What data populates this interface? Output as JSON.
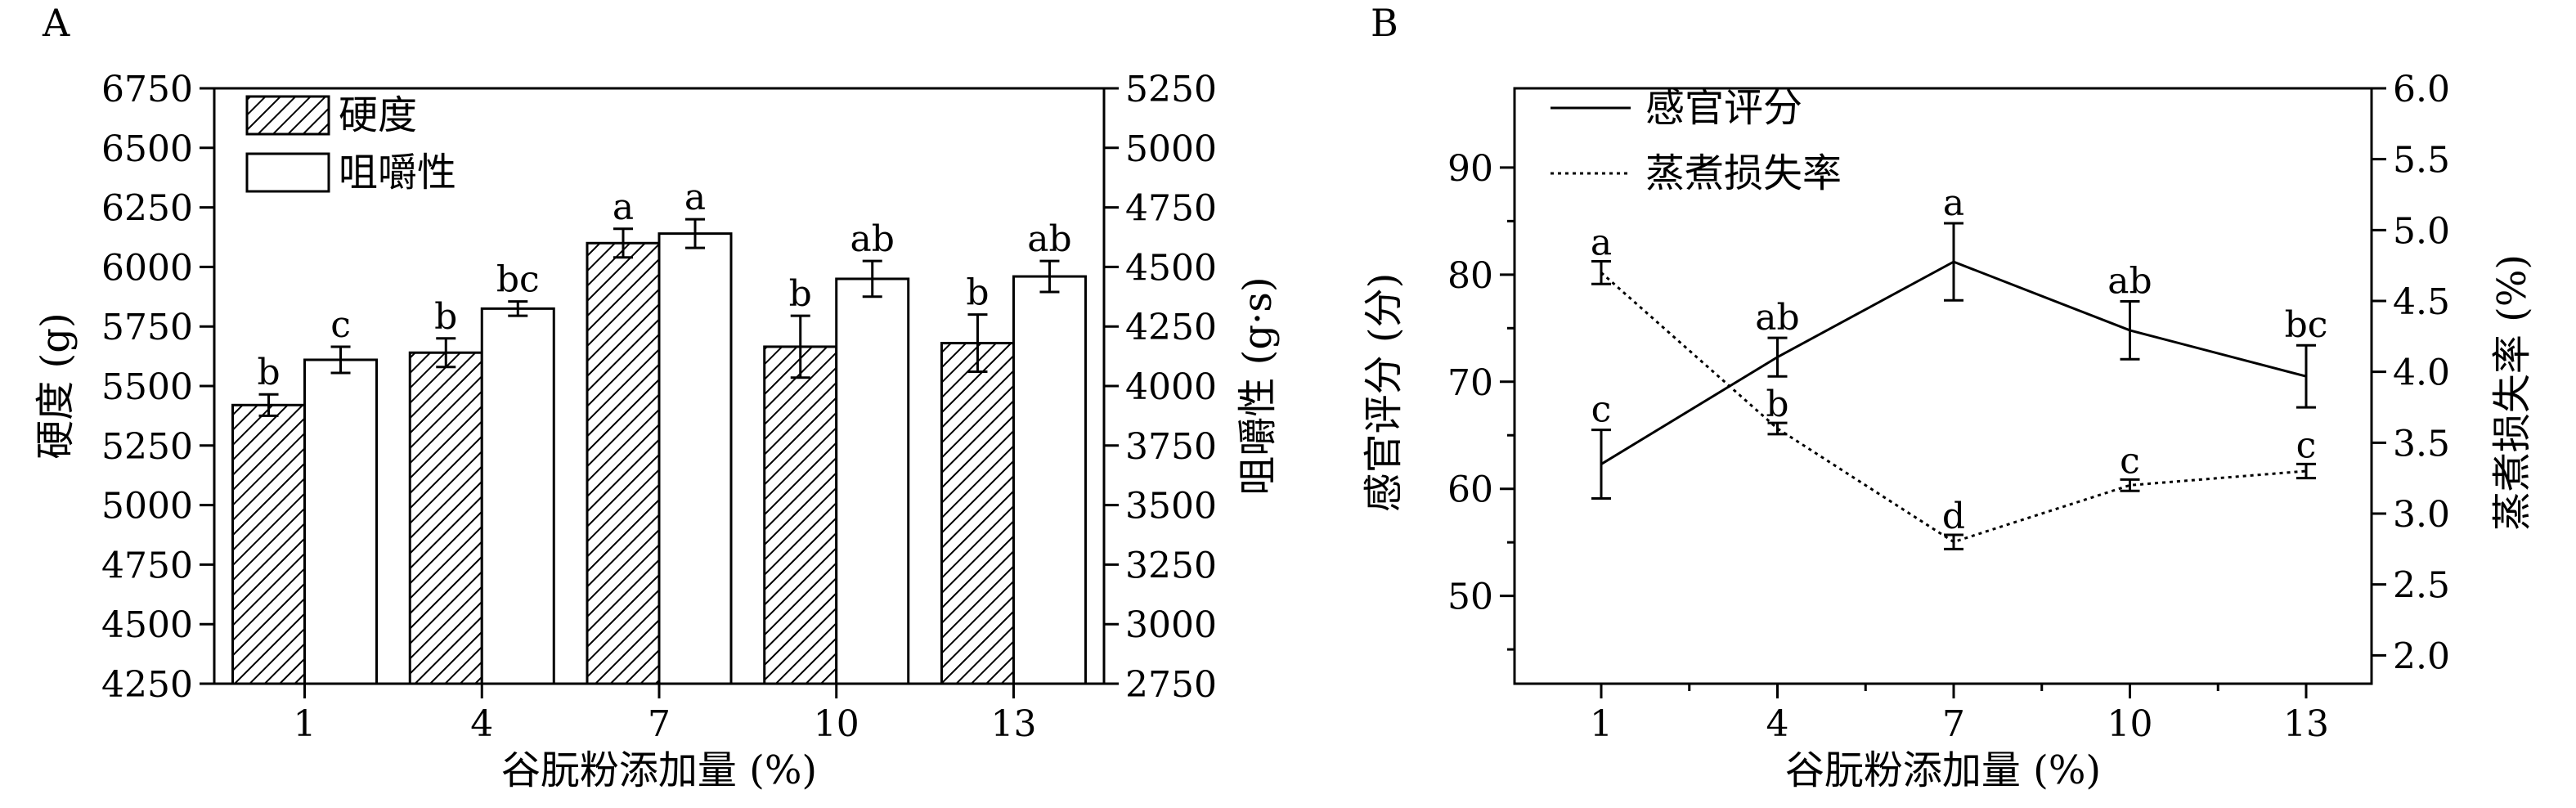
{
  "chart_data": [
    {
      "panel": "A",
      "type": "bar",
      "xlabel": "谷朊粉添加量 (%)",
      "ylabel": "硬度 (g)",
      "y2label": "咀嚼性 (g·s)",
      "categories": [
        "1",
        "4",
        "7",
        "10",
        "13"
      ],
      "ylim": [
        4250,
        6750
      ],
      "yticks": [
        4250,
        4500,
        4750,
        5000,
        5250,
        5500,
        5750,
        6000,
        6250,
        6500,
        6750
      ],
      "y2lim": [
        2750,
        5250
      ],
      "y2ticks": [
        2750,
        3000,
        3250,
        3500,
        3750,
        4000,
        4250,
        4500,
        4750,
        5000,
        5250
      ],
      "legend_position": "top-left",
      "series": [
        {
          "name": "硬度",
          "axis": "left",
          "pattern": "hatched",
          "values": [
            5420,
            5640,
            6100,
            5665,
            5680
          ],
          "errors": [
            45,
            60,
            60,
            130,
            120
          ],
          "letters": [
            "b",
            "b",
            "a",
            "b",
            "b"
          ]
        },
        {
          "name": "咀嚼性",
          "axis": "right",
          "pattern": "open",
          "values": [
            4110,
            4325,
            4640,
            4450,
            4460
          ],
          "errors": [
            55,
            30,
            60,
            75,
            65
          ],
          "letters": [
            "c",
            "bc",
            "a",
            "ab",
            "ab"
          ]
        }
      ]
    },
    {
      "panel": "B",
      "type": "line",
      "xlabel": "谷朊粉添加量 (%)",
      "ylabel": "感官评分 (分)",
      "y2label": "蒸煮损失率 (%)",
      "categories": [
        "1",
        "4",
        "7",
        "10",
        "13"
      ],
      "ylim": [
        41.8,
        97.4
      ],
      "yticks": [
        50,
        60,
        70,
        80,
        90
      ],
      "y2lim": [
        1.8,
        6.0
      ],
      "y2ticks": [
        2.0,
        2.5,
        3.0,
        3.5,
        4.0,
        4.5,
        5.0,
        5.5,
        6.0
      ],
      "legend_position": "top-left",
      "series": [
        {
          "name": "感官评分",
          "axis": "left",
          "style": "solid",
          "values": [
            62.3,
            72.3,
            81.2,
            74.8,
            70.5
          ],
          "errors": [
            3.2,
            1.8,
            3.6,
            2.7,
            2.9
          ],
          "letters": [
            "c",
            "ab",
            "a",
            "ab",
            "bc"
          ]
        },
        {
          "name": "蒸煮损失率",
          "axis": "right",
          "style": "dotted",
          "values": [
            4.7,
            3.6,
            2.8,
            3.2,
            3.3
          ],
          "errors": [
            0.08,
            0.04,
            0.05,
            0.04,
            0.05
          ],
          "letters": [
            "a",
            "b",
            "d",
            "c",
            "c"
          ]
        }
      ]
    }
  ]
}
